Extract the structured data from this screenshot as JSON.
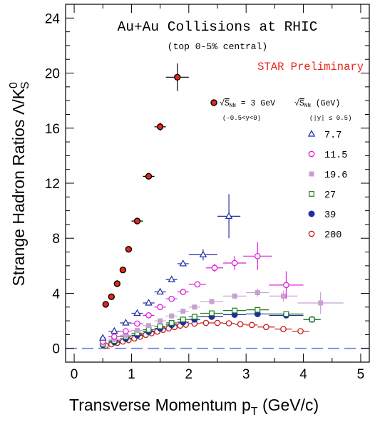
{
  "chart_data": {
    "type": "scatter",
    "title": "Au+Au Collisions at RHIC",
    "subtitle": "(top 0-5% central)",
    "annotation": "STAR Preliminary",
    "xlabel": "Transverse Momentum p",
    "xlabel_sub": "T",
    "xlabel_unit": " (GeV/c)",
    "ylabel": "Strange Hadron Ratios Λ/K",
    "ylabel_sub": "S",
    "ylabel_sup": "0",
    "xlim": [
      -0.15,
      5.15
    ],
    "ylim": [
      -1.0,
      25.0
    ],
    "x_ticks": [
      0,
      1,
      2,
      3,
      4,
      5
    ],
    "y_ticks": [
      0,
      4,
      8,
      12,
      16,
      20,
      24
    ],
    "grid": false,
    "reference_line": {
      "y": 0,
      "style": "dashed",
      "color": "#6a7fe8"
    },
    "legend_3gev": {
      "label_pre": "√",
      "label_s": "S",
      "label_sub": "NN",
      "label_post": " = 3 GeV",
      "rapidity": "(-0.5<y<0)"
    },
    "legend_header": {
      "label_pre": "√",
      "label_s": "S",
      "label_sub": "NN",
      "label_post": " (GeV)",
      "rapidity": "(|y| ≤ 0.5)"
    },
    "series": [
      {
        "name": "3 GeV",
        "marker": "circle-filled",
        "color": "#e8241c",
        "edge": "#000000",
        "points": [
          {
            "x": 0.55,
            "y": 3.2,
            "xe": 0.05,
            "ye": 0.15
          },
          {
            "x": 0.65,
            "y": 3.75,
            "xe": 0.05,
            "ye": 0.15
          },
          {
            "x": 0.75,
            "y": 4.7,
            "xe": 0.05,
            "ye": 0.15
          },
          {
            "x": 0.85,
            "y": 5.7,
            "xe": 0.05,
            "ye": 0.15
          },
          {
            "x": 0.95,
            "y": 7.2,
            "xe": 0.05,
            "ye": 0.15
          },
          {
            "x": 1.1,
            "y": 9.25,
            "xe": 0.1,
            "ye": 0.15
          },
          {
            "x": 1.3,
            "y": 12.5,
            "xe": 0.1,
            "ye": 0.2
          },
          {
            "x": 1.5,
            "y": 16.1,
            "xe": 0.1,
            "ye": 0.3
          },
          {
            "x": 1.8,
            "y": 19.7,
            "xe": 0.2,
            "ye": 1.0
          }
        ]
      },
      {
        "name": "7.7",
        "marker": "triangle-open",
        "color": "#1f2ea0",
        "points": [
          {
            "x": 0.5,
            "y": 0.75,
            "xe": 0.05,
            "ye": 0.05
          },
          {
            "x": 0.7,
            "y": 1.25,
            "xe": 0.1,
            "ye": 0.05
          },
          {
            "x": 0.9,
            "y": 1.85,
            "xe": 0.1,
            "ye": 0.08
          },
          {
            "x": 1.1,
            "y": 2.55,
            "xe": 0.1,
            "ye": 0.1
          },
          {
            "x": 1.3,
            "y": 3.3,
            "xe": 0.1,
            "ye": 0.1
          },
          {
            "x": 1.5,
            "y": 4.1,
            "xe": 0.1,
            "ye": 0.1
          },
          {
            "x": 1.7,
            "y": 5.0,
            "xe": 0.1,
            "ye": 0.15
          },
          {
            "x": 1.9,
            "y": 6.15,
            "xe": 0.1,
            "ye": 0.2
          },
          {
            "x": 2.25,
            "y": 6.8,
            "xe": 0.25,
            "ye": 0.4
          },
          {
            "x": 2.7,
            "y": 9.6,
            "xe": 0.2,
            "ye": 1.6
          }
        ]
      },
      {
        "name": "11.5",
        "marker": "circle-open",
        "color": "#e020d8",
        "points": [
          {
            "x": 0.5,
            "y": 0.5,
            "xe": 0.05,
            "ye": 0.05
          },
          {
            "x": 0.7,
            "y": 0.85,
            "xe": 0.1,
            "ye": 0.05
          },
          {
            "x": 0.9,
            "y": 1.25,
            "xe": 0.1,
            "ye": 0.05
          },
          {
            "x": 1.1,
            "y": 1.8,
            "xe": 0.1,
            "ye": 0.08
          },
          {
            "x": 1.3,
            "y": 2.4,
            "xe": 0.1,
            "ye": 0.1
          },
          {
            "x": 1.5,
            "y": 3.0,
            "xe": 0.1,
            "ye": 0.1
          },
          {
            "x": 1.7,
            "y": 3.6,
            "xe": 0.1,
            "ye": 0.1
          },
          {
            "x": 1.9,
            "y": 4.1,
            "xe": 0.1,
            "ye": 0.15
          },
          {
            "x": 2.15,
            "y": 4.65,
            "xe": 0.15,
            "ye": 0.2
          },
          {
            "x": 2.45,
            "y": 5.85,
            "xe": 0.15,
            "ye": 0.3
          },
          {
            "x": 2.8,
            "y": 6.2,
            "xe": 0.2,
            "ye": 0.5
          },
          {
            "x": 3.2,
            "y": 6.7,
            "xe": 0.25,
            "ye": 1.0
          },
          {
            "x": 3.7,
            "y": 4.6,
            "xe": 0.3,
            "ye": 1.0
          }
        ]
      },
      {
        "name": "19.6",
        "marker": "square-filled",
        "color": "#c8a0d2",
        "points": [
          {
            "x": 0.5,
            "y": 0.4,
            "xe": 0.05,
            "ye": 0.05
          },
          {
            "x": 0.7,
            "y": 0.65,
            "xe": 0.1,
            "ye": 0.05
          },
          {
            "x": 0.9,
            "y": 0.95,
            "xe": 0.1,
            "ye": 0.05
          },
          {
            "x": 1.1,
            "y": 1.3,
            "xe": 0.1,
            "ye": 0.05
          },
          {
            "x": 1.3,
            "y": 1.65,
            "xe": 0.1,
            "ye": 0.05
          },
          {
            "x": 1.5,
            "y": 2.0,
            "xe": 0.1,
            "ye": 0.08
          },
          {
            "x": 1.7,
            "y": 2.35,
            "xe": 0.1,
            "ye": 0.08
          },
          {
            "x": 1.9,
            "y": 2.7,
            "xe": 0.1,
            "ye": 0.1
          },
          {
            "x": 2.1,
            "y": 3.0,
            "xe": 0.1,
            "ye": 0.1
          },
          {
            "x": 2.4,
            "y": 3.4,
            "xe": 0.2,
            "ye": 0.15
          },
          {
            "x": 2.8,
            "y": 3.8,
            "xe": 0.2,
            "ye": 0.2
          },
          {
            "x": 3.2,
            "y": 4.05,
            "xe": 0.2,
            "ye": 0.3
          },
          {
            "x": 3.65,
            "y": 3.8,
            "xe": 0.25,
            "ye": 0.4
          },
          {
            "x": 4.3,
            "y": 3.3,
            "xe": 0.4,
            "ye": 0.8
          }
        ]
      },
      {
        "name": "27",
        "marker": "square-open",
        "color": "#1c7a1c",
        "points": [
          {
            "x": 0.5,
            "y": 0.3,
            "xe": 0.05,
            "ye": 0.05
          },
          {
            "x": 0.7,
            "y": 0.55,
            "xe": 0.1,
            "ye": 0.05
          },
          {
            "x": 0.9,
            "y": 0.85,
            "xe": 0.1,
            "ye": 0.05
          },
          {
            "x": 1.1,
            "y": 1.1,
            "xe": 0.1,
            "ye": 0.05
          },
          {
            "x": 1.3,
            "y": 1.35,
            "xe": 0.1,
            "ye": 0.05
          },
          {
            "x": 1.5,
            "y": 1.6,
            "xe": 0.1,
            "ye": 0.05
          },
          {
            "x": 1.7,
            "y": 1.85,
            "xe": 0.1,
            "ye": 0.05
          },
          {
            "x": 1.9,
            "y": 2.1,
            "xe": 0.1,
            "ye": 0.05
          },
          {
            "x": 2.1,
            "y": 2.3,
            "xe": 0.1,
            "ye": 0.05
          },
          {
            "x": 2.4,
            "y": 2.55,
            "xe": 0.2,
            "ye": 0.08
          },
          {
            "x": 2.8,
            "y": 2.75,
            "xe": 0.2,
            "ye": 0.1
          },
          {
            "x": 3.2,
            "y": 2.8,
            "xe": 0.2,
            "ye": 0.1
          },
          {
            "x": 3.7,
            "y": 2.5,
            "xe": 0.3,
            "ye": 0.15
          },
          {
            "x": 4.15,
            "y": 2.1,
            "xe": 0.15,
            "ye": 0.2
          }
        ]
      },
      {
        "name": "39",
        "marker": "circle-filled",
        "color": "#1e2f9e",
        "points": [
          {
            "x": 0.5,
            "y": 0.25,
            "xe": 0.05,
            "ye": 0.05
          },
          {
            "x": 0.7,
            "y": 0.45,
            "xe": 0.1,
            "ye": 0.05
          },
          {
            "x": 0.9,
            "y": 0.7,
            "xe": 0.1,
            "ye": 0.05
          },
          {
            "x": 1.1,
            "y": 0.95,
            "xe": 0.1,
            "ye": 0.05
          },
          {
            "x": 1.3,
            "y": 1.2,
            "xe": 0.1,
            "ye": 0.05
          },
          {
            "x": 1.5,
            "y": 1.45,
            "xe": 0.1,
            "ye": 0.05
          },
          {
            "x": 1.7,
            "y": 1.7,
            "xe": 0.1,
            "ye": 0.05
          },
          {
            "x": 1.9,
            "y": 1.9,
            "xe": 0.1,
            "ye": 0.05
          },
          {
            "x": 2.1,
            "y": 2.1,
            "xe": 0.1,
            "ye": 0.05
          },
          {
            "x": 2.4,
            "y": 2.3,
            "xe": 0.2,
            "ye": 0.05
          },
          {
            "x": 2.8,
            "y": 2.45,
            "xe": 0.2,
            "ye": 0.08
          },
          {
            "x": 3.2,
            "y": 2.5,
            "xe": 0.2,
            "ye": 0.1
          },
          {
            "x": 3.7,
            "y": 2.4,
            "xe": 0.3,
            "ye": 0.1
          },
          {
            "x": 4.15,
            "y": 2.1,
            "xe": 0.15,
            "ye": 0.15
          }
        ]
      },
      {
        "name": "200",
        "marker": "circle-open",
        "color": "#c41e1e",
        "points": [
          {
            "x": 0.55,
            "y": 0.2,
            "xe": 0.05,
            "ye": 0.05
          },
          {
            "x": 0.65,
            "y": 0.3,
            "xe": 0.05,
            "ye": 0.05
          },
          {
            "x": 0.75,
            "y": 0.4,
            "xe": 0.05,
            "ye": 0.05
          },
          {
            "x": 0.85,
            "y": 0.5,
            "xe": 0.05,
            "ye": 0.05
          },
          {
            "x": 0.95,
            "y": 0.6,
            "xe": 0.05,
            "ye": 0.05
          },
          {
            "x": 1.05,
            "y": 0.72,
            "xe": 0.05,
            "ye": 0.05
          },
          {
            "x": 1.15,
            "y": 0.85,
            "xe": 0.05,
            "ye": 0.05
          },
          {
            "x": 1.25,
            "y": 0.98,
            "xe": 0.05,
            "ye": 0.05
          },
          {
            "x": 1.35,
            "y": 1.1,
            "xe": 0.05,
            "ye": 0.05
          },
          {
            "x": 1.45,
            "y": 1.22,
            "xe": 0.05,
            "ye": 0.05
          },
          {
            "x": 1.55,
            "y": 1.35,
            "xe": 0.05,
            "ye": 0.05
          },
          {
            "x": 1.65,
            "y": 1.45,
            "xe": 0.05,
            "ye": 0.05
          },
          {
            "x": 1.75,
            "y": 1.55,
            "xe": 0.05,
            "ye": 0.05
          },
          {
            "x": 1.85,
            "y": 1.65,
            "xe": 0.05,
            "ye": 0.05
          },
          {
            "x": 1.95,
            "y": 1.72,
            "xe": 0.05,
            "ye": 0.05
          },
          {
            "x": 2.1,
            "y": 1.8,
            "xe": 0.1,
            "ye": 0.05
          },
          {
            "x": 2.3,
            "y": 1.85,
            "xe": 0.1,
            "ye": 0.05
          },
          {
            "x": 2.5,
            "y": 1.85,
            "xe": 0.1,
            "ye": 0.05
          },
          {
            "x": 2.7,
            "y": 1.82,
            "xe": 0.1,
            "ye": 0.05
          },
          {
            "x": 2.9,
            "y": 1.75,
            "xe": 0.1,
            "ye": 0.05
          },
          {
            "x": 3.1,
            "y": 1.7,
            "xe": 0.1,
            "ye": 0.05
          },
          {
            "x": 3.35,
            "y": 1.55,
            "xe": 0.15,
            "ye": 0.05
          },
          {
            "x": 3.65,
            "y": 1.4,
            "xe": 0.15,
            "ye": 0.05
          },
          {
            "x": 3.95,
            "y": 1.25,
            "xe": 0.15,
            "ye": 0.08
          }
        ]
      }
    ]
  }
}
